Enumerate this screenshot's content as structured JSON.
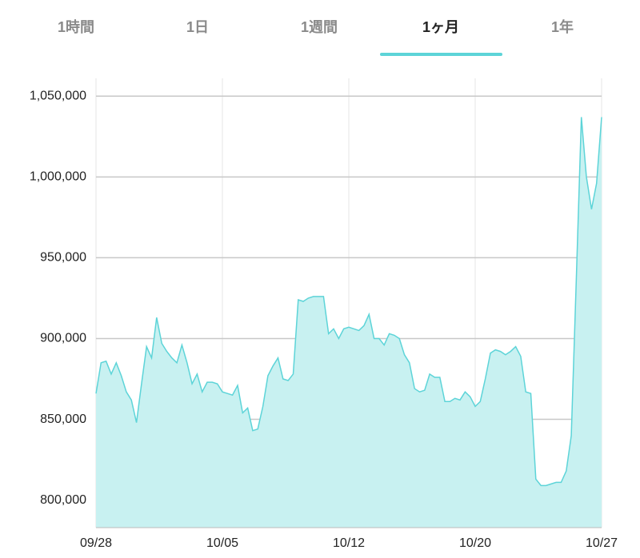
{
  "tabs": [
    "1時間",
    "1日",
    "1週間",
    "1ヶ月",
    "1年"
  ],
  "chart_data": {
    "type": "area",
    "values": [
      866000,
      885000,
      886000,
      878000,
      885000,
      877000,
      867000,
      862000,
      848000,
      872000,
      895000,
      888000,
      913000,
      897000,
      892000,
      888000,
      885000,
      896000,
      885000,
      872000,
      878000,
      867000,
      873000,
      873000,
      872000,
      867000,
      866000,
      865000,
      871000,
      854000,
      857000,
      843000,
      844000,
      858000,
      877000,
      883000,
      888000,
      875000,
      874000,
      878000,
      924000,
      923000,
      925000,
      926000,
      926000,
      926000,
      903000,
      906000,
      900000,
      906000,
      907000,
      906000,
      905000,
      908000,
      915000,
      900000,
      900000,
      896000,
      903000,
      902000,
      900000,
      890000,
      885000,
      869000,
      867000,
      868000,
      878000,
      876000,
      876000,
      861000,
      861000,
      863000,
      862000,
      867000,
      864000,
      858000,
      861000,
      875000,
      891000,
      893000,
      892000,
      890000,
      892000,
      895000,
      889000,
      867000,
      866000,
      813000,
      809000,
      809000,
      810000,
      811000,
      811000,
      818000,
      840000,
      937000,
      1037000,
      1000000,
      980000,
      996000,
      1037000
    ],
    "color": "#5dd4d8",
    "fill": "#c8f1f1",
    "xlim": [
      0,
      100
    ],
    "xticks": [
      {
        "value": 0,
        "label": "09/28"
      },
      {
        "value": 25,
        "label": "10/05"
      },
      {
        "value": 50,
        "label": "10/12"
      },
      {
        "value": 75,
        "label": "10/20"
      },
      {
        "value": 100,
        "label": "10/27"
      }
    ],
    "ylim": [
      783000,
      1061000
    ],
    "yticks": [
      {
        "value": 800000,
        "label": "800,000"
      },
      {
        "value": 850000,
        "label": "850,000"
      },
      {
        "value": 900000,
        "label": "900,000"
      },
      {
        "value": 950000,
        "label": "950,000"
      },
      {
        "value": 1000000,
        "label": "1,000,000"
      },
      {
        "value": 1050000,
        "label": "1,050,000"
      }
    ],
    "grid": true
  }
}
